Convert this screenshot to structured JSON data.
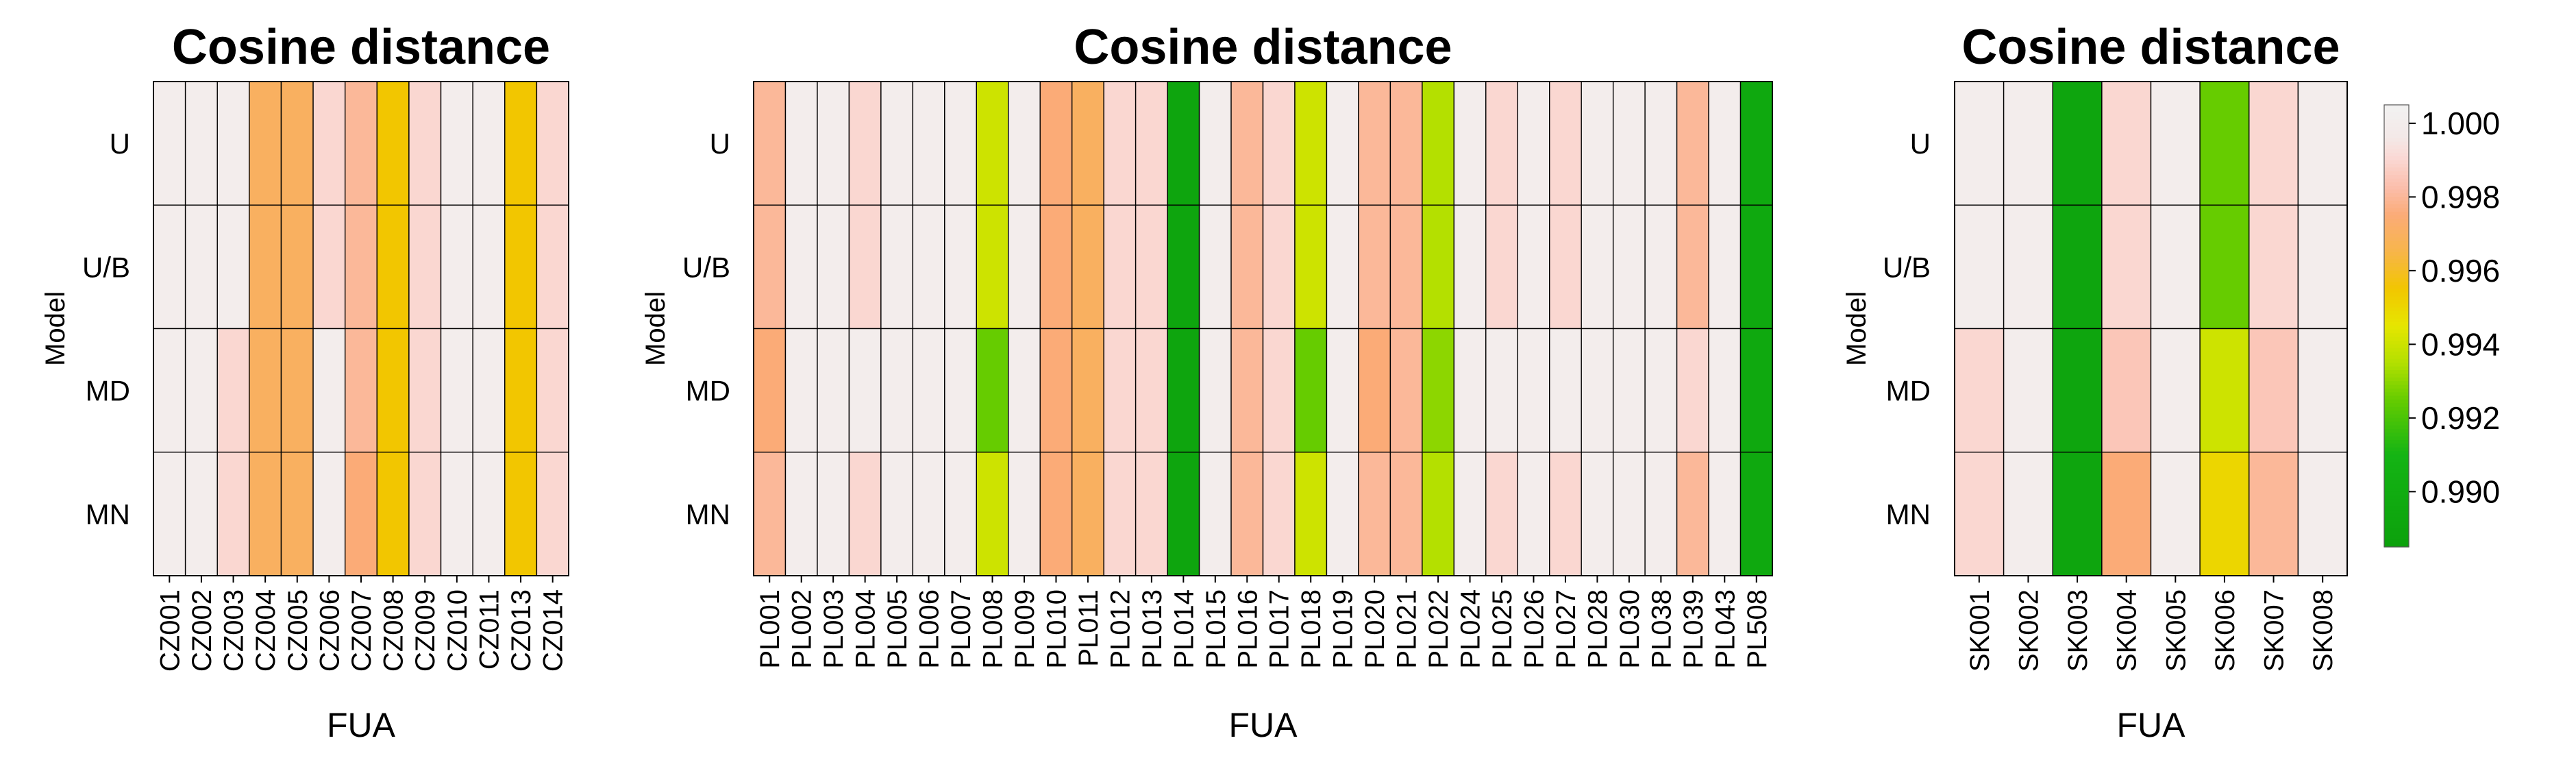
{
  "chart_data": [
    {
      "type": "heatmap",
      "title": "Cosine distance",
      "xlabel": "FUA",
      "ylabel": "Model",
      "rows": [
        "U",
        "U/B",
        "MD",
        "MN"
      ],
      "columns": [
        "CZ001",
        "CZ002",
        "CZ003",
        "CZ004",
        "CZ005",
        "CZ006",
        "CZ007",
        "CZ008",
        "CZ009",
        "CZ010",
        "CZ011",
        "CZ013",
        "CZ014"
      ],
      "values": [
        [
          1.0,
          1.0,
          1.0,
          0.997,
          0.997,
          0.999,
          0.998,
          0.9955,
          0.999,
          1.0,
          1.0,
          0.9955,
          0.999
        ],
        [
          1.0,
          1.0,
          1.0,
          0.997,
          0.997,
          0.999,
          0.998,
          0.9955,
          0.999,
          1.0,
          1.0,
          0.9955,
          0.999
        ],
        [
          1.0,
          1.0,
          0.999,
          0.997,
          0.997,
          1.0,
          0.998,
          0.9955,
          0.999,
          1.0,
          1.0,
          0.9955,
          0.999
        ],
        [
          1.0,
          1.0,
          0.999,
          0.997,
          0.997,
          1.0,
          0.9975,
          0.9955,
          0.999,
          1.0,
          1.0,
          0.9955,
          0.999
        ]
      ]
    },
    {
      "type": "heatmap",
      "title": "Cosine distance",
      "xlabel": "FUA",
      "ylabel": "Model",
      "rows": [
        "U",
        "U/B",
        "MD",
        "MN"
      ],
      "columns": [
        "PL001",
        "PL002",
        "PL003",
        "PL004",
        "PL005",
        "PL006",
        "PL007",
        "PL008",
        "PL009",
        "PL010",
        "PL011",
        "PL012",
        "PL013",
        "PL014",
        "PL015",
        "PL016",
        "PL017",
        "PL018",
        "PL019",
        "PL020",
        "PL021",
        "PL022",
        "PL024",
        "PL025",
        "PL026",
        "PL027",
        "PL028",
        "PL030",
        "PL038",
        "PL039",
        "PL043",
        "PL508"
      ],
      "values": [
        [
          0.998,
          1.0,
          1.0,
          0.999,
          1.0,
          1.0,
          1.0,
          0.994,
          1.0,
          0.9975,
          0.997,
          0.999,
          0.999,
          0.989,
          1.0,
          0.998,
          0.999,
          0.994,
          1.0,
          0.998,
          0.998,
          0.9935,
          1.0,
          0.999,
          1.0,
          0.999,
          1.0,
          1.0,
          1.0,
          0.998,
          1.0,
          0.9895
        ],
        [
          0.998,
          1.0,
          1.0,
          0.999,
          1.0,
          1.0,
          1.0,
          0.994,
          1.0,
          0.9975,
          0.997,
          0.999,
          0.999,
          0.989,
          1.0,
          0.998,
          0.999,
          0.994,
          1.0,
          0.998,
          0.998,
          0.9935,
          1.0,
          0.999,
          1.0,
          0.999,
          1.0,
          1.0,
          1.0,
          0.998,
          1.0,
          0.9895
        ],
        [
          0.9975,
          1.0,
          1.0,
          1.0,
          1.0,
          1.0,
          1.0,
          0.9925,
          1.0,
          0.9975,
          0.997,
          0.999,
          0.999,
          0.989,
          1.0,
          0.998,
          0.999,
          0.9925,
          1.0,
          0.9975,
          0.998,
          0.993,
          1.0,
          1.0,
          1.0,
          1.0,
          1.0,
          1.0,
          1.0,
          0.999,
          1.0,
          0.9895
        ],
        [
          0.998,
          1.0,
          1.0,
          0.999,
          1.0,
          1.0,
          1.0,
          0.994,
          1.0,
          0.9975,
          0.997,
          0.999,
          0.999,
          0.989,
          1.0,
          0.998,
          0.999,
          0.994,
          1.0,
          0.998,
          0.998,
          0.9935,
          1.0,
          0.999,
          1.0,
          0.999,
          1.0,
          1.0,
          1.0,
          0.998,
          1.0,
          0.9895
        ]
      ]
    },
    {
      "type": "heatmap",
      "title": "Cosine distance",
      "xlabel": "FUA",
      "ylabel": "Model",
      "rows": [
        "U",
        "U/B",
        "MD",
        "MN"
      ],
      "columns": [
        "SK001",
        "SK002",
        "SK003",
        "SK004",
        "SK005",
        "SK006",
        "SK007",
        "SK008"
      ],
      "values": [
        [
          1.0,
          1.0,
          0.989,
          0.999,
          1.0,
          0.9925,
          0.999,
          1.0
        ],
        [
          1.0,
          1.0,
          0.989,
          0.999,
          1.0,
          0.9925,
          0.999,
          1.0
        ],
        [
          0.999,
          1.0,
          0.989,
          0.9985,
          1.0,
          0.994,
          0.9985,
          1.0
        ],
        [
          0.999,
          1.0,
          0.989,
          0.9975,
          1.0,
          0.995,
          0.998,
          1.0
        ]
      ]
    }
  ],
  "legend": {
    "ticks": [
      "1.000",
      "0.998",
      "0.996",
      "0.994",
      "0.992",
      "0.990"
    ],
    "tick_values": [
      1.0,
      0.998,
      0.996,
      0.994,
      0.992,
      0.99
    ],
    "range": [
      0.9885,
      1.0005
    ]
  },
  "colors": {
    "gridline": "#000000",
    "stops": [
      {
        "v": 0.9885,
        "c": "#0ca10c"
      },
      {
        "v": 0.991,
        "c": "#14b414"
      },
      {
        "v": 0.9925,
        "c": "#66cc00"
      },
      {
        "v": 0.9935,
        "c": "#b4e000"
      },
      {
        "v": 0.9945,
        "c": "#e6e600"
      },
      {
        "v": 0.9955,
        "c": "#f2c600"
      },
      {
        "v": 0.9965,
        "c": "#f7b54a"
      },
      {
        "v": 0.9975,
        "c": "#fbab77"
      },
      {
        "v": 0.9983,
        "c": "#fbbfae"
      },
      {
        "v": 0.9991,
        "c": "#fadad6"
      },
      {
        "v": 0.9996,
        "c": "#f3e9e7"
      },
      {
        "v": 1.0005,
        "c": "#f2f2f2"
      }
    ]
  }
}
